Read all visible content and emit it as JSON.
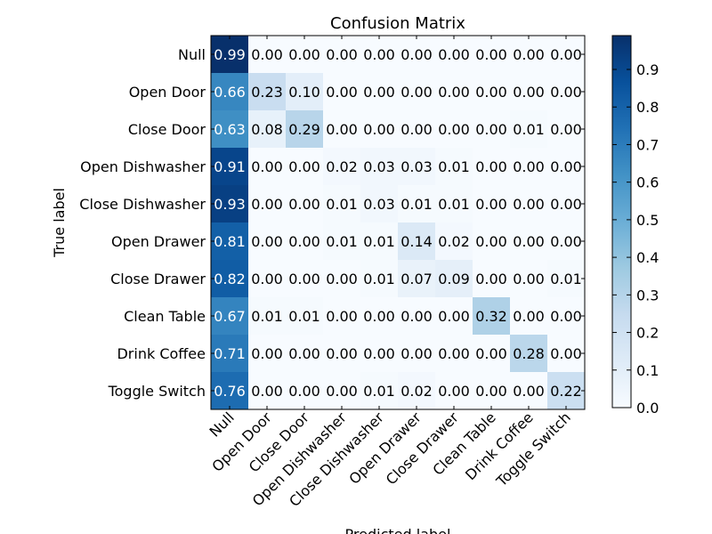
{
  "chart_data": {
    "type": "heatmap",
    "title": "Confusion Matrix",
    "xlabel": "Predicted label",
    "ylabel": "True label",
    "rows": [
      "Null",
      "Open Door",
      "Close Door",
      "Open Dishwasher",
      "Close Dishwasher",
      "Open Drawer",
      "Close Drawer",
      "Clean Table",
      "Drink Coffee",
      "Toggle Switch"
    ],
    "columns": [
      "Null",
      "Open Door",
      "Close Door",
      "Open Dishwasher",
      "Close Dishwasher",
      "Open Drawer",
      "Close Drawer",
      "Clean Table",
      "Drink Coffee",
      "Toggle Switch"
    ],
    "values": [
      [
        0.99,
        0.0,
        0.0,
        0.0,
        0.0,
        0.0,
        0.0,
        0.0,
        0.0,
        0.0
      ],
      [
        0.66,
        0.23,
        0.1,
        0.0,
        0.0,
        0.0,
        0.0,
        0.0,
        0.0,
        0.0
      ],
      [
        0.63,
        0.08,
        0.29,
        0.0,
        0.0,
        0.0,
        0.0,
        0.0,
        0.01,
        0.0
      ],
      [
        0.91,
        0.0,
        0.0,
        0.02,
        0.03,
        0.03,
        0.01,
        0.0,
        0.0,
        0.0
      ],
      [
        0.93,
        0.0,
        0.0,
        0.01,
        0.03,
        0.01,
        0.01,
        0.0,
        0.0,
        0.0
      ],
      [
        0.81,
        0.0,
        0.0,
        0.01,
        0.01,
        0.14,
        0.02,
        0.0,
        0.0,
        0.0
      ],
      [
        0.82,
        0.0,
        0.0,
        0.0,
        0.01,
        0.07,
        0.09,
        0.0,
        0.0,
        0.01
      ],
      [
        0.67,
        0.01,
        0.01,
        0.0,
        0.0,
        0.0,
        0.0,
        0.32,
        0.0,
        0.0
      ],
      [
        0.71,
        0.0,
        0.0,
        0.0,
        0.0,
        0.0,
        0.0,
        0.0,
        0.28,
        0.0
      ],
      [
        0.76,
        0.0,
        0.0,
        0.0,
        0.01,
        0.02,
        0.0,
        0.0,
        0.0,
        0.22
      ]
    ],
    "colormap": "Blues",
    "color_low": "#f7fbff",
    "color_high": "#08306b",
    "value_format": "0.00",
    "colorbar": {
      "range": [
        0.0,
        0.99
      ],
      "ticks": [
        0.0,
        0.1,
        0.2,
        0.3,
        0.4,
        0.5,
        0.6,
        0.7,
        0.8,
        0.9
      ],
      "tick_labels": [
        "0.0",
        "0.1",
        "0.2",
        "0.3",
        "0.4",
        "0.5",
        "0.6",
        "0.7",
        "0.8",
        "0.9"
      ]
    }
  }
}
